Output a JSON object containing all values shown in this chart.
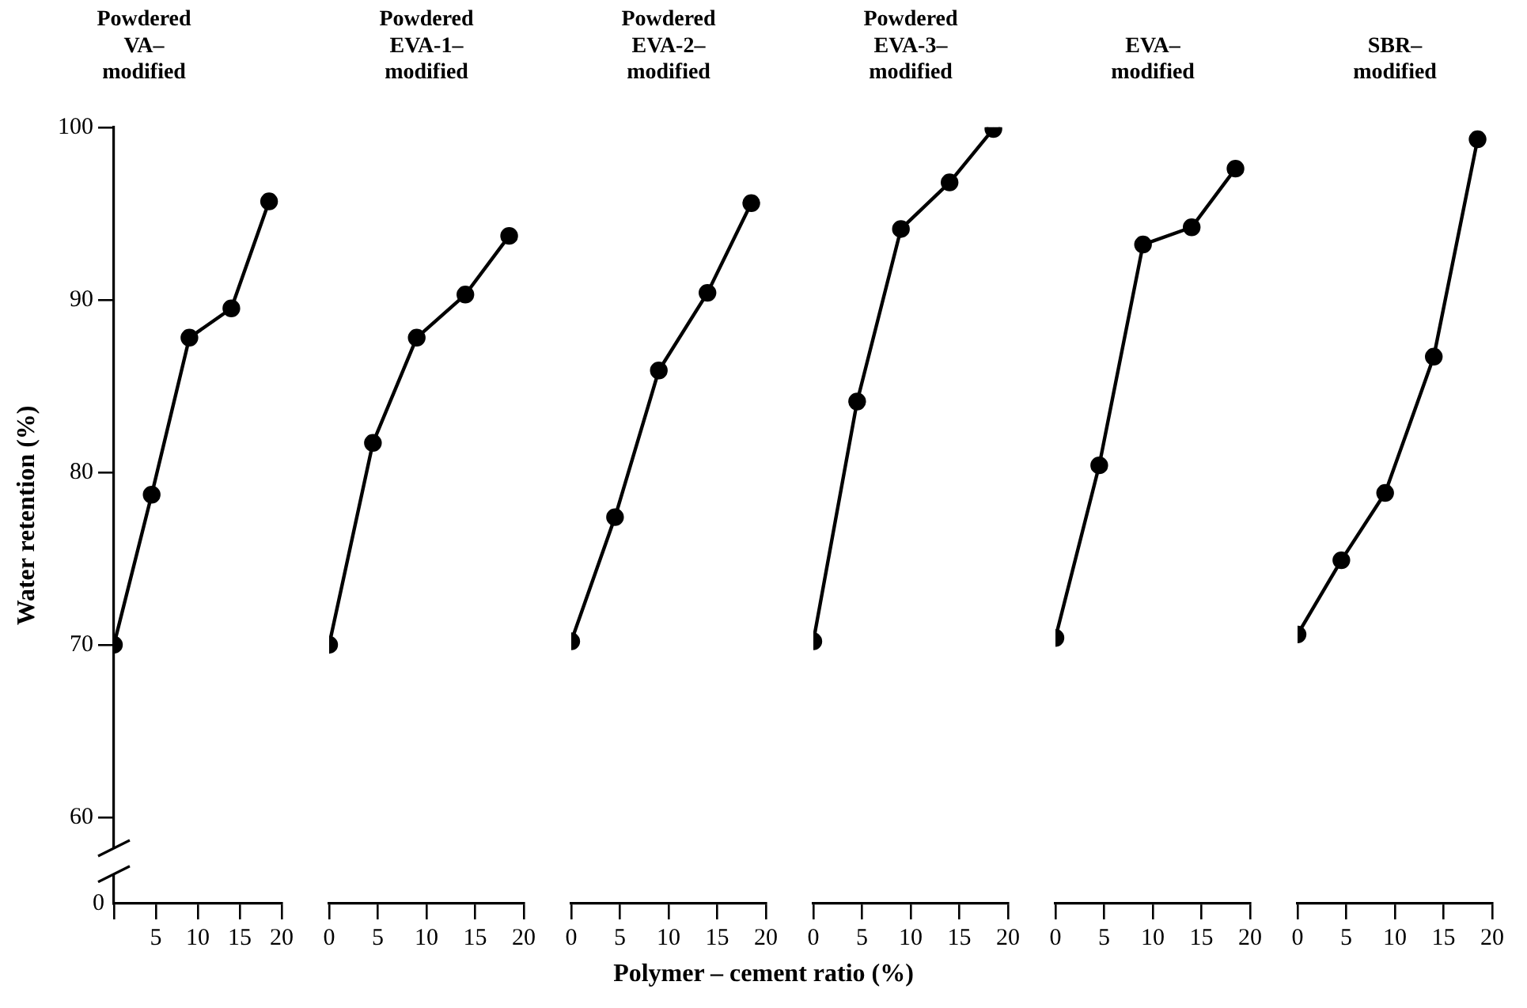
{
  "chart_data": [
    {
      "type": "line",
      "title": "Powdered VA–modified",
      "ylabel": "Water retention (%)",
      "annotations": [
        "0"
      ],
      "x": [
        0,
        4.5,
        9,
        14,
        18.5
      ],
      "values": [
        70,
        78.7,
        87.8,
        89.5,
        95.7
      ],
      "color": "#000000",
      "marker": "circle",
      "line_style": "solid",
      "grid": false,
      "legend": false,
      "xlim": [
        0,
        20
      ],
      "xticks": [
        {
          "value": 0,
          "label": null
        },
        5,
        10,
        15,
        20
      ],
      "ylim": [
        55,
        100
      ],
      "yticks": [
        60,
        70,
        80,
        90,
        100
      ]
    },
    {
      "type": "line",
      "title": "Powdered EVA-1–modified",
      "x": [
        0,
        4.5,
        9,
        14,
        18.5
      ],
      "values": [
        70,
        81.7,
        87.8,
        90.3,
        93.7
      ],
      "color": "#000000",
      "marker": "circle",
      "line_style": "solid",
      "grid": false,
      "legend": false,
      "xlim": [
        0,
        20
      ],
      "xticks": [
        0,
        5,
        10,
        15,
        20
      ],
      "ylim": [
        55,
        100
      ],
      "yticks": [
        60,
        70,
        80,
        90,
        100
      ],
      "tick_labels": "x"
    },
    {
      "type": "line",
      "title": "Powdered EVA-2–modified",
      "xlabel": "Polymer – cement ratio (%)",
      "x": [
        0,
        4.5,
        9,
        14,
        18.5
      ],
      "values": [
        70.2,
        77.4,
        85.9,
        90.4,
        95.6
      ],
      "color": "#000000",
      "marker": "circle",
      "line_style": "solid",
      "grid": false,
      "legend": false,
      "xlim": [
        0,
        20
      ],
      "xticks": [
        0,
        5,
        10,
        15,
        20
      ],
      "ylim": [
        55,
        100
      ],
      "yticks": [
        60,
        70,
        80,
        90,
        100
      ],
      "tick_labels": "x"
    },
    {
      "type": "line",
      "title": "Powdered EVA-3–modified",
      "x": [
        0,
        4.5,
        9,
        14,
        18.5
      ],
      "values": [
        70.2,
        84.1,
        94.1,
        96.8,
        99.9
      ],
      "color": "#000000",
      "marker": "circle",
      "line_style": "solid",
      "grid": false,
      "legend": false,
      "xlim": [
        0,
        20
      ],
      "xticks": [
        0,
        5,
        10,
        15,
        20
      ],
      "ylim": [
        55,
        100
      ],
      "yticks": [
        60,
        70,
        80,
        90,
        100
      ],
      "tick_labels": "x"
    },
    {
      "type": "line",
      "title": "EVA–modified",
      "x": [
        0,
        4.5,
        9,
        14,
        18.5
      ],
      "values": [
        70.4,
        80.4,
        93.2,
        94.2,
        97.6
      ],
      "color": "#000000",
      "marker": "circle",
      "line_style": "solid",
      "grid": false,
      "legend": false,
      "xlim": [
        0,
        20
      ],
      "xticks": [
        0,
        5,
        10,
        15,
        20
      ],
      "ylim": [
        55,
        100
      ],
      "yticks": [
        60,
        70,
        80,
        90,
        100
      ],
      "tick_labels": "x"
    },
    {
      "type": "line",
      "title": "SBR–modified",
      "x": [
        0,
        4.5,
        9,
        14,
        18.5
      ],
      "values": [
        70.6,
        74.9,
        78.8,
        86.7,
        99.3
      ],
      "color": "#000000",
      "marker": "circle",
      "line_style": "solid",
      "grid": false,
      "legend": false,
      "xlim": [
        0,
        20
      ],
      "xticks": [
        0,
        5,
        10,
        15,
        20
      ],
      "ylim": [
        55,
        100
      ],
      "yticks": [
        60,
        70,
        80,
        90,
        100
      ],
      "tick_labels": "x"
    }
  ]
}
